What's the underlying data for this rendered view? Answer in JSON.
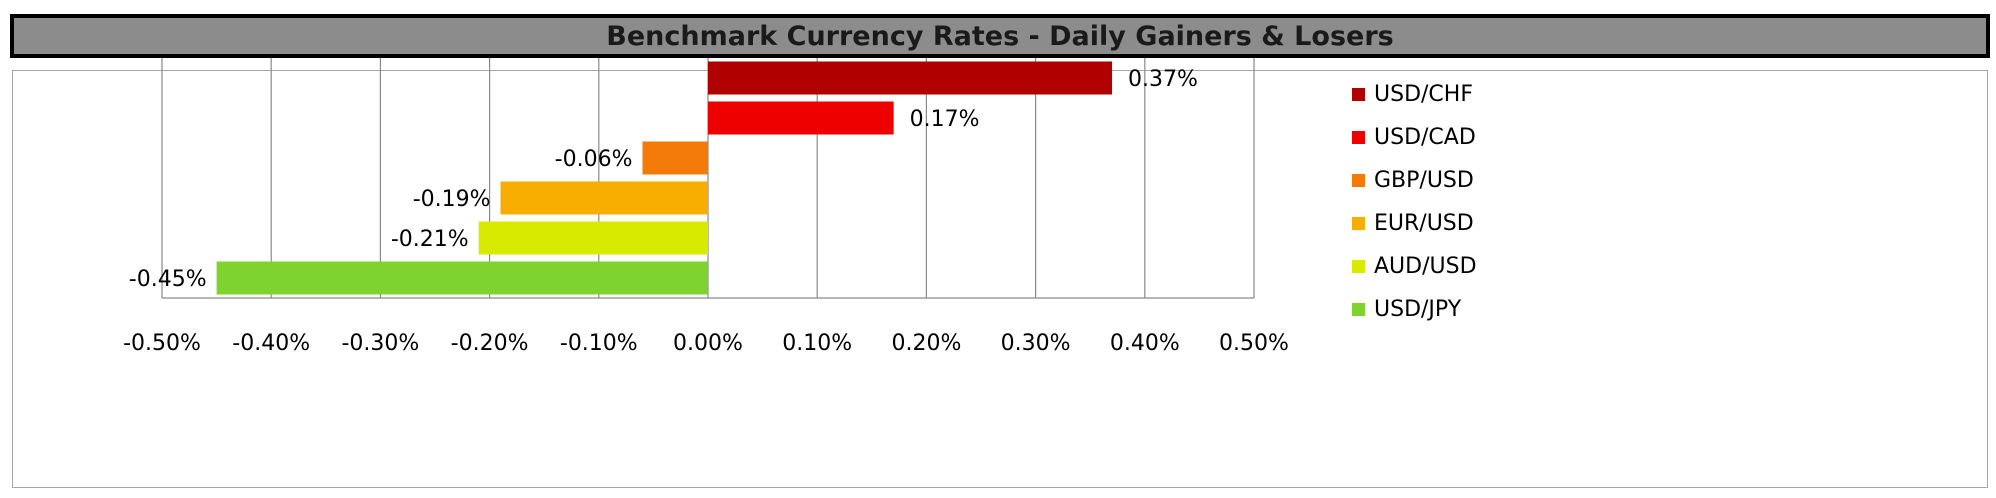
{
  "chart_data": {
    "type": "bar",
    "orientation": "horizontal",
    "title": "Benchmark Currency Rates - Daily Gainers & Losers",
    "categories": [
      "USD/CHF",
      "USD/CAD",
      "GBP/USD",
      "EUR/USD",
      "AUD/USD",
      "USD/JPY"
    ],
    "values": [
      0.37,
      0.17,
      -0.06,
      -0.19,
      -0.21,
      -0.45
    ],
    "value_labels": [
      "0.37%",
      "0.17%",
      "-0.06%",
      "-0.19%",
      "-0.21%",
      "-0.45%"
    ],
    "colors": [
      "#b10000",
      "#ee0000",
      "#f47a0a",
      "#f8ae00",
      "#d8ea00",
      "#7ed32e"
    ],
    "xlim": [
      -0.5,
      0.5
    ],
    "xticks": [
      -0.5,
      -0.4,
      -0.3,
      -0.2,
      -0.1,
      0.0,
      0.1,
      0.2,
      0.3,
      0.4,
      0.5
    ],
    "xtick_labels": [
      "-0.50%",
      "-0.40%",
      "-0.30%",
      "-0.20%",
      "-0.10%",
      "0.00%",
      "0.10%",
      "0.20%",
      "0.30%",
      "0.40%",
      "0.50%"
    ],
    "grid": "vertical",
    "legend_position": "right"
  }
}
